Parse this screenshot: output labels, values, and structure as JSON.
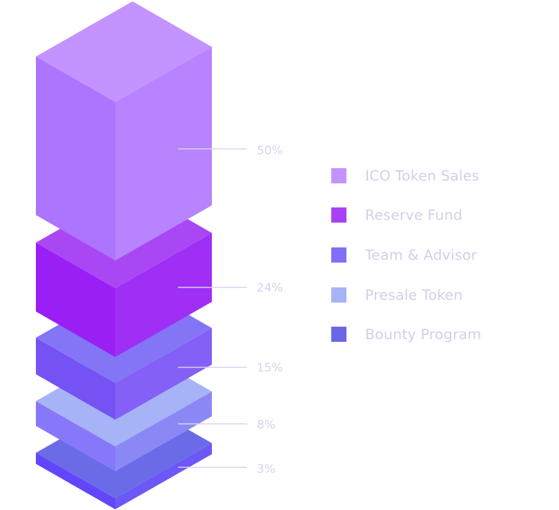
{
  "chart_data": {
    "type": "bar",
    "style": "isometric stacked blocks",
    "categories": [
      "ICO Token Sales",
      "Reserve Fund",
      "Team & Advisor",
      "Presale Token",
      "Bounty Program"
    ],
    "values": [
      50,
      24,
      15,
      8,
      3
    ],
    "labels": [
      "50%",
      "24%",
      "15%",
      "8%",
      "3%"
    ],
    "unit": "%",
    "colors": [
      {
        "top": "#c393ff",
        "left": "#ad74fd",
        "right": "#b783ff",
        "legend": "#c393ff"
      },
      {
        "top": "#aa47f5",
        "left": "#9a1ff5",
        "right": "#a02ff5",
        "legend": "#aa40f5"
      },
      {
        "top": "#8375f5",
        "left": "#7552f3",
        "right": "#8460f6",
        "legend": "#8070f5"
      },
      {
        "top": "#a6b3f6",
        "left": "#8778fb",
        "right": "#8b88f5",
        "legend": "#a6b3f6"
      },
      {
        "top": "#6b6be8",
        "left": "#6246fb",
        "right": "#6c57f7",
        "legend": "#6b66e8"
      }
    ],
    "label_color": "#d6d0ec",
    "leader_line_color": "#d9d3ef",
    "legend_position": "right",
    "grid": false
  }
}
